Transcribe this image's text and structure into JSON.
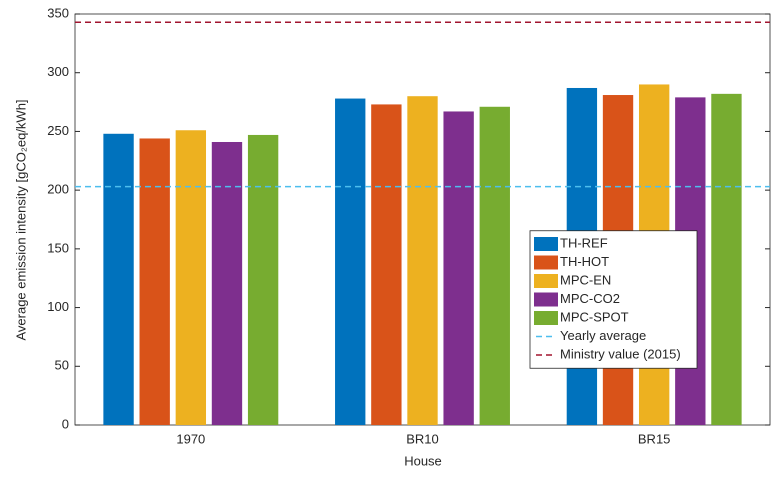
{
  "chart_data": {
    "type": "bar",
    "xlabel": "House",
    "ylabel": "Average emission intensity [gCO₂eq/kWh]",
    "categories": [
      "1970",
      "BR10",
      "BR15"
    ],
    "series": [
      {
        "name": "TH-REF",
        "color": "#0072bd",
        "values": [
          248,
          278,
          287
        ]
      },
      {
        "name": "TH-HOT",
        "color": "#d95319",
        "values": [
          244,
          273,
          281
        ]
      },
      {
        "name": "MPC-EN",
        "color": "#edb120",
        "values": [
          251,
          280,
          290
        ]
      },
      {
        "name": "MPC-CO2",
        "color": "#7e2f8e",
        "values": [
          241,
          267,
          279
        ]
      },
      {
        "name": "MPC-SPOT",
        "color": "#77ac30",
        "values": [
          247,
          271,
          282
        ]
      }
    ],
    "reference_lines": [
      {
        "name": "Yearly average",
        "value": 203,
        "color": "#4dbeee"
      },
      {
        "name": "Ministry value (2015)",
        "value": 343,
        "color": "#a2142f"
      }
    ],
    "ylim": [
      0,
      350
    ],
    "yticks": [
      0,
      50,
      100,
      150,
      200,
      250,
      300,
      350
    ],
    "legend": "east"
  }
}
